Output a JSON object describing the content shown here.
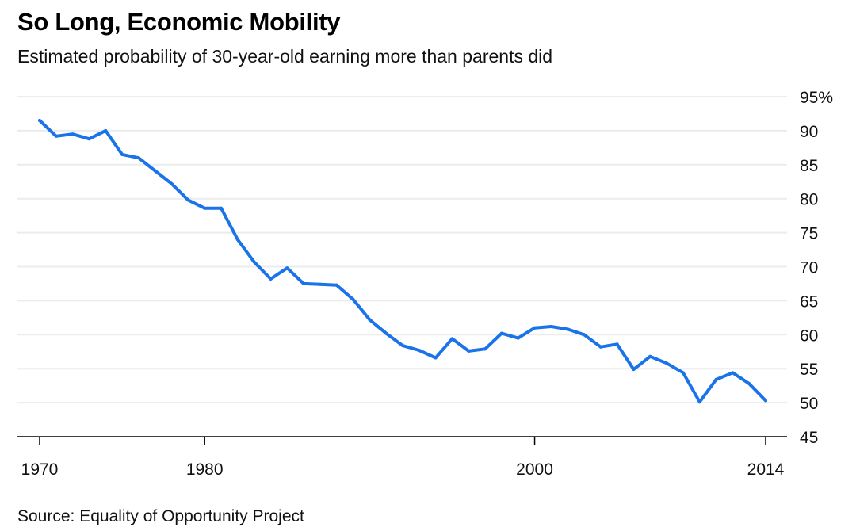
{
  "title": "So Long, Economic Mobility",
  "subtitle": "Estimated probability of 30-year-old earning more than parents did",
  "source": "Source: Equality of Opportunity Project",
  "colors": {
    "line": "#1a73e8",
    "grid": "#ececec",
    "axis": "#000000"
  },
  "chart_data": {
    "type": "line",
    "title": "So Long, Economic Mobility",
    "subtitle": "Estimated probability of 30-year-old earning more than parents did",
    "xlabel": "",
    "ylabel": "",
    "xlim": [
      1970,
      2014
    ],
    "ylim": [
      45,
      95
    ],
    "y_ticks": [
      45,
      50,
      55,
      60,
      65,
      70,
      75,
      80,
      85,
      90,
      95
    ],
    "y_tick_labels": [
      "45",
      "50",
      "55",
      "60",
      "65",
      "70",
      "75",
      "80",
      "85",
      "90",
      "95%"
    ],
    "x_ticks": [
      1970,
      1980,
      2000,
      2014
    ],
    "x_tick_labels": [
      "1970",
      "1980",
      "2000",
      "2014"
    ],
    "grid": true,
    "series": [
      {
        "x": [
          1970,
          1971,
          1972,
          1973,
          1974,
          1975,
          1976,
          1977,
          1978,
          1979,
          1980,
          1981,
          1982,
          1983,
          1984,
          1985,
          1986,
          1987,
          1988,
          1989,
          1990,
          1991,
          1992,
          1993,
          1994,
          1995,
          1996,
          1997,
          1998,
          1999,
          2000,
          2001,
          2002,
          2003,
          2004,
          2005,
          2006,
          2007,
          2008,
          2009,
          2010,
          2011,
          2012,
          2013,
          2014
        ],
        "values": [
          91.5,
          89.2,
          89.5,
          88.8,
          90.0,
          86.5,
          86.0,
          84.1,
          82.2,
          79.8,
          78.6,
          78.6,
          74.0,
          70.7,
          68.2,
          69.8,
          67.5,
          67.4,
          67.3,
          65.2,
          62.2,
          60.2,
          58.4,
          57.7,
          56.6,
          59.4,
          57.6,
          57.9,
          60.2,
          59.5,
          61.0,
          61.2,
          60.8,
          60.0,
          58.2,
          58.6,
          54.9,
          56.8,
          55.8,
          54.4,
          50.1,
          53.4,
          54.4,
          52.8,
          50.3
        ]
      }
    ]
  }
}
